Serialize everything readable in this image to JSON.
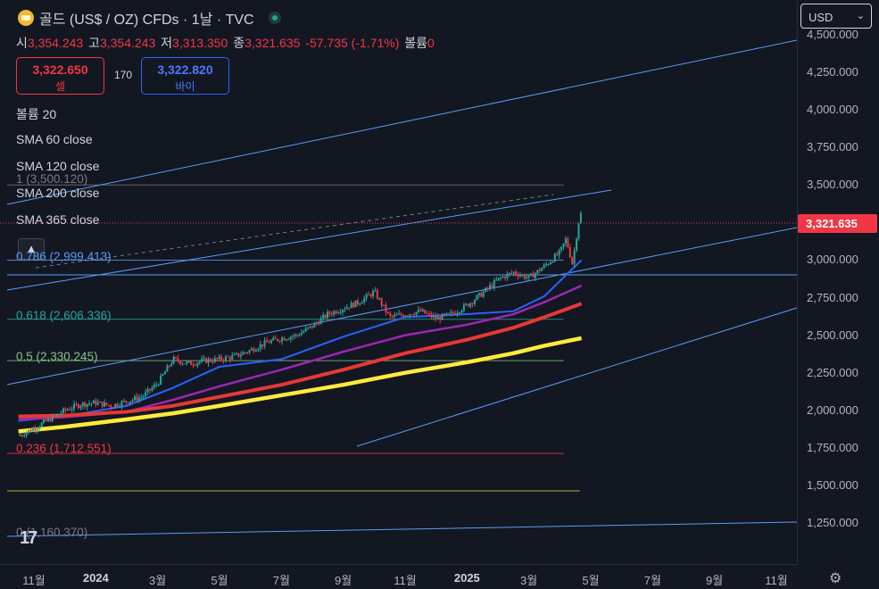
{
  "header": {
    "title": "골드 (US$ / OZ) CFDs · 1날 · TVC"
  },
  "ohlc": [
    {
      "key": "시",
      "value": "3,354.243"
    },
    {
      "key": "고",
      "value": "3,354.243"
    },
    {
      "key": "저",
      "value": "3,313.350"
    },
    {
      "key": "종",
      "value": "3,321.635"
    },
    {
      "key": "",
      "value": "-57.735 (-1.71%)"
    },
    {
      "key": "볼륨",
      "value": "0"
    }
  ],
  "trade": {
    "sell_price": "3,322.650",
    "sell_label": "셀",
    "spread": "170",
    "buy_price": "3,322.820",
    "buy_label": "바이"
  },
  "indicators": [
    "볼륨 20",
    "SMA 60 close",
    "SMA 120 close",
    "SMA 200 close",
    "SMA 365 close"
  ],
  "collapse_icon": "▲",
  "currency": {
    "label": "USD",
    "chev": "⌄"
  },
  "last_price": "3,321.635",
  "logo_text": "17",
  "settings_icon": "⚙",
  "chart_data": {
    "type": "line",
    "title": "골드 (US$ / OZ) CFDs · 1날 · TVC",
    "ylim": [
      1200,
      4550
    ],
    "y_ticks": [
      "4,500.000",
      "4,250.000",
      "4,000.000",
      "3,750.000",
      "3,500.000",
      "3,250.000",
      "3,000.000",
      "2,750.000",
      "2,500.000",
      "2,250.000",
      "2,000.000",
      "1,750.000",
      "1,500.000",
      "1,250.000"
    ],
    "y_tick_values": [
      4500,
      4250,
      4000,
      3750,
      3500,
      3250,
      3000,
      2750,
      2500,
      2250,
      2000,
      1750,
      1500,
      1250
    ],
    "x_ticks": [
      "11월",
      "2024",
      "3월",
      "5월",
      "7월",
      "9월",
      "11월",
      "2025",
      "3월",
      "5월",
      "7월",
      "9월",
      "11월"
    ],
    "x_tick_months": [
      0,
      2,
      4,
      6,
      8,
      10,
      12,
      14,
      16,
      18,
      20,
      22,
      24
    ],
    "x_tick_bold": [
      false,
      true,
      false,
      false,
      false,
      false,
      false,
      true,
      false,
      false,
      false,
      false,
      false
    ],
    "last_data_month": 17.7,
    "price_path": [
      [
        -0.5,
        1830
      ],
      [
        0,
        1880
      ],
      [
        0.5,
        1940
      ],
      [
        1,
        2000
      ],
      [
        1.5,
        2040
      ],
      [
        2,
        2050
      ],
      [
        2.5,
        2030
      ],
      [
        3,
        2060
      ],
      [
        3.5,
        2090
      ],
      [
        4,
        2180
      ],
      [
        4.5,
        2340
      ],
      [
        5,
        2310
      ],
      [
        5.5,
        2330
      ],
      [
        6,
        2340
      ],
      [
        6.5,
        2360
      ],
      [
        7,
        2400
      ],
      [
        7.5,
        2450
      ],
      [
        8,
        2480
      ],
      [
        8.5,
        2500
      ],
      [
        9,
        2560
      ],
      [
        9.5,
        2640
      ],
      [
        10,
        2680
      ],
      [
        10.5,
        2720
      ],
      [
        11,
        2790
      ],
      [
        11.5,
        2620
      ],
      [
        12,
        2640
      ],
      [
        12.5,
        2660
      ],
      [
        13,
        2610
      ],
      [
        13.5,
        2640
      ],
      [
        14,
        2700
      ],
      [
        14.5,
        2780
      ],
      [
        15,
        2870
      ],
      [
        15.5,
        2920
      ],
      [
        16,
        2880
      ],
      [
        16.5,
        2960
      ],
      [
        17,
        3050
      ],
      [
        17.2,
        3140
      ],
      [
        17.4,
        2980
      ],
      [
        17.5,
        3100
      ],
      [
        17.6,
        3250
      ],
      [
        17.7,
        3321.635
      ]
    ],
    "series": [
      {
        "name": "SMA 60 close",
        "color": "#2962ff",
        "points": [
          [
            -0.5,
            1930
          ],
          [
            1,
            1960
          ],
          [
            3,
            2030
          ],
          [
            4.5,
            2150
          ],
          [
            6,
            2290
          ],
          [
            8,
            2340
          ],
          [
            10,
            2490
          ],
          [
            12,
            2620
          ],
          [
            14,
            2640
          ],
          [
            15.5,
            2660
          ],
          [
            16.5,
            2760
          ],
          [
            17.7,
            3000
          ]
        ]
      },
      {
        "name": "SMA 120 close",
        "color": "#9c27b0",
        "points": [
          [
            -0.5,
            1940
          ],
          [
            1,
            1955
          ],
          [
            3,
            1990
          ],
          [
            4.5,
            2070
          ],
          [
            6,
            2160
          ],
          [
            8,
            2270
          ],
          [
            10,
            2390
          ],
          [
            12,
            2500
          ],
          [
            14,
            2570
          ],
          [
            15.5,
            2640
          ],
          [
            16.5,
            2720
          ],
          [
            17.7,
            2830
          ]
        ]
      },
      {
        "name": "SMA 200 close",
        "color": "#e53935",
        "points": [
          [
            -0.5,
            1960
          ],
          [
            1,
            1965
          ],
          [
            3,
            1990
          ],
          [
            4.5,
            2030
          ],
          [
            6,
            2090
          ],
          [
            8,
            2170
          ],
          [
            10,
            2270
          ],
          [
            12,
            2380
          ],
          [
            14,
            2470
          ],
          [
            15.5,
            2550
          ],
          [
            16.5,
            2620
          ],
          [
            17.7,
            2710
          ]
        ]
      },
      {
        "name": "SMA 365 close",
        "color": "#ffeb3b",
        "points": [
          [
            -0.5,
            1860
          ],
          [
            1,
            1890
          ],
          [
            3,
            1940
          ],
          [
            4.5,
            1980
          ],
          [
            6,
            2030
          ],
          [
            8,
            2100
          ],
          [
            10,
            2170
          ],
          [
            12,
            2250
          ],
          [
            14,
            2320
          ],
          [
            15.5,
            2380
          ],
          [
            16.5,
            2430
          ],
          [
            17.7,
            2480
          ]
        ]
      }
    ],
    "fib_levels": [
      {
        "label": "1 (3,500.120)",
        "value": 3500.12,
        "color": "#787b86"
      },
      {
        "label": "0.786 (2,999.413)",
        "value": 2999.413,
        "color": "#5b9cf6"
      },
      {
        "label": "0.618 (2,606.336)",
        "value": 2606.336,
        "color": "#26a69a"
      },
      {
        "label": "0.5 (2,330.245)",
        "value": 2330.245,
        "color": "#81c784"
      },
      {
        "label": "0.236 (1,712.551)",
        "value": 1712.551,
        "color": "#f23645"
      },
      {
        "label": "0 (1,160.370)",
        "value": 1160.37,
        "color": "#787b86"
      }
    ]
  }
}
